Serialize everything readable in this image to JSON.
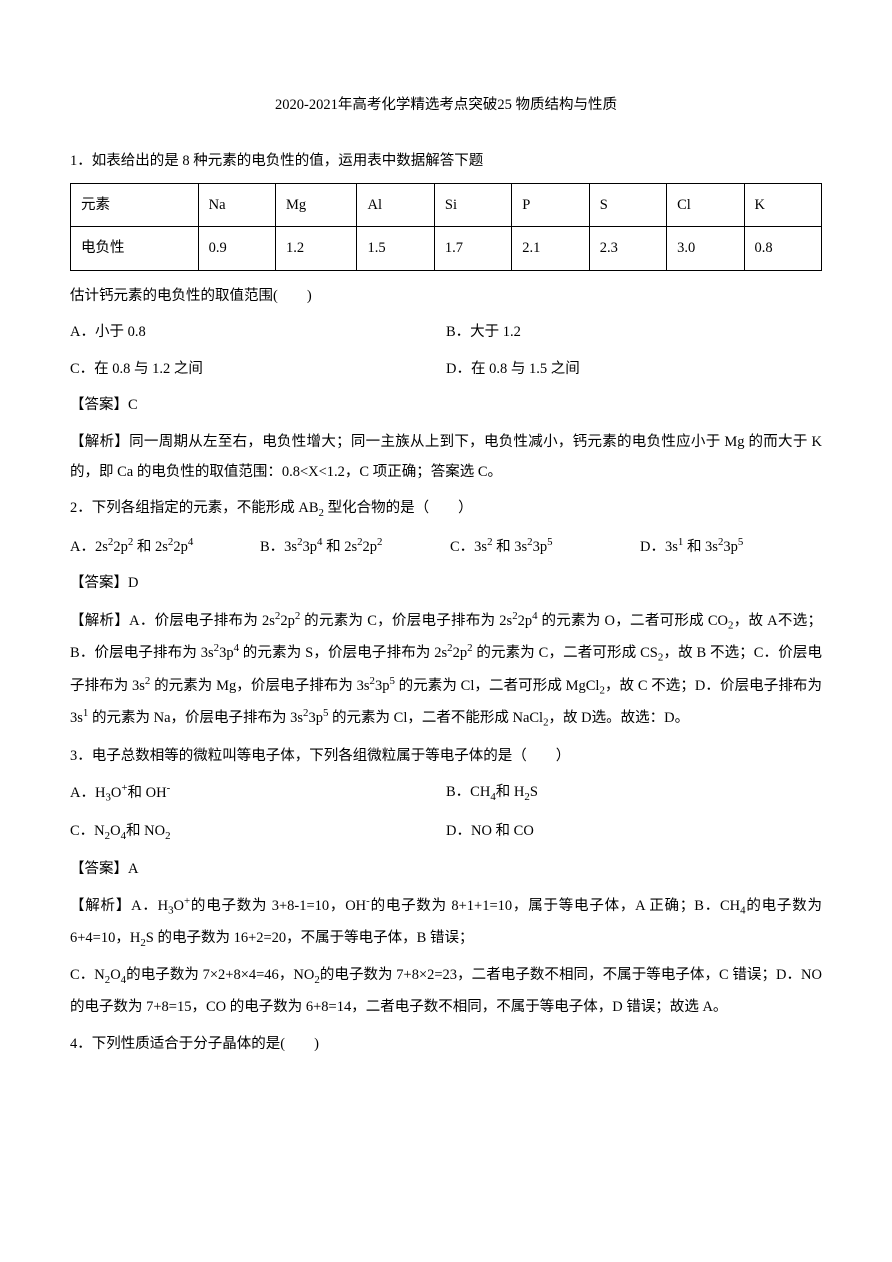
{
  "title": "2020-2021年高考化学精选考点突破25 物质结构与性质",
  "q1": {
    "stem": "1．如表给出的是 8 种元素的电负性的值，运用表中数据解答下题",
    "table": {
      "rowLabels": [
        "元素",
        "电负性"
      ],
      "cols": [
        "Na",
        "Mg",
        "Al",
        "Si",
        "P",
        "S",
        "Cl",
        "K"
      ],
      "vals": [
        "0.9",
        "1.2",
        "1.5",
        "1.7",
        "2.1",
        "2.3",
        "3.0",
        "0.8"
      ]
    },
    "prompt": "估计钙元素的电负性的取值范围(　　)",
    "A": "A．小于 0.8",
    "B": "B．大于 1.2",
    "C": "C．在 0.8 与 1.2 之间",
    "D": "D．在 0.8 与 1.5 之间",
    "ans": "【答案】C",
    "exp": "【解析】同一周期从左至右，电负性增大；同一主族从上到下，电负性减小，钙元素的电负性应小于 Mg 的而大于 K 的，即 Ca 的电负性的取值范围：0.8<X<1.2，C 项正确；答案选 C。"
  },
  "q2": {
    "stem_pre": "2．下列各组指定的元素，不能形成 AB",
    "stem_sub": "2",
    "stem_post": " 型化合物的是（　　）",
    "A": {
      "p": "A．2s",
      "a": "2",
      "b": "2p",
      "c": "2",
      "d": " 和 2s",
      "e": "2",
      "f": "2p",
      "g": "4"
    },
    "B": {
      "p": "B．3s",
      "a": "2",
      "b": "3p",
      "c": "4",
      "d": " 和 2s",
      "e": "2",
      "f": "2p",
      "g": "2"
    },
    "C": {
      "p": "C．3s",
      "a": "2",
      "b": " 和 3s",
      "c": "2",
      "d": "3p",
      "e": "5"
    },
    "D": {
      "p": "D．3s",
      "a": "1",
      "b": " 和 3s",
      "c": "2",
      "d": "3p",
      "e": "5"
    },
    "ans": "【答案】D",
    "exp": {
      "t1": "【解析】A．价层电子排布为 2s",
      "s1": "2",
      "t2": "2p",
      "s2": "2",
      "t3": " 的元素为 C，价层电子排布为 2s",
      "s3": "2",
      "t4": "2p",
      "s4": "4",
      "t5": " 的元素为 O，二者可形成 CO",
      "s5": "2",
      "t6": "，故 A不选；B．价层电子排布为 3s",
      "s6": "2",
      "t7": "3p",
      "s7": "4",
      "t8": " 的元素为 S，价层电子排布为 2s",
      "s8": "2",
      "t9": "2p",
      "s9": "2",
      "t10": " 的元素为 C，二者可形成 CS",
      "s10": "2",
      "t11": "，故 B 不选；C．价层电子排布为 3s",
      "s11": "2",
      "t12": " 的元素为 Mg，价层电子排布为 3s",
      "s12": "2",
      "t13": "3p",
      "s13": "5",
      "t14": " 的元素为 Cl，二者可形成 MgCl",
      "s14": "2",
      "t15": "，故 C 不选；D．价层电子排布为 3s",
      "s15": "1",
      "t16": " 的元素为 Na，价层电子排布为 3s",
      "s16": "2",
      "t17": "3p",
      "s17": "5",
      "t18": " 的元素为 Cl，二者不能形成 NaCl",
      "s18": "2",
      "t19": "，故 D选。故选：D。"
    }
  },
  "q3": {
    "stem": "3．电子总数相等的微粒叫等电子体，下列各组微粒属于等电子体的是（　　）",
    "A": {
      "p": "A．H",
      "s1": "3",
      "t1": "O",
      "u1": "+",
      "t2": "和 OH",
      "u2": "-"
    },
    "B": {
      "p": "B．CH",
      "s1": "4",
      "t1": "和 H",
      "s2": "2",
      "t2": "S"
    },
    "C": {
      "p": "C．N",
      "s1": "2",
      "t1": "O",
      "s2": "4",
      "t2": "和 NO",
      "s3": "2"
    },
    "D": {
      "p": "D．NO 和 CO"
    },
    "ans": "【答案】A",
    "exp": {
      "t1": "【解析】A．H",
      "s1": "3",
      "t2": "O",
      "u1": "+",
      "t3": "的电子数为 3+8-1=10，OH",
      "u2": "-",
      "t4": "的电子数为 8+1+1=10，属于等电子体，A 正确；B．CH",
      "s2": "4",
      "t5": "的电子数为 6+4=10，H",
      "s3": "2",
      "t6": "S 的电子数为 16+2=20，不属于等电子体，B 错误；",
      "t7": "C．N",
      "s4": "2",
      "t8": "O",
      "s5": "4",
      "t9": "的电子数为 7×2+8×4=46，NO",
      "s6": "2",
      "t10": "的电子数为 7+8×2=23，二者电子数不相同，不属于等电子体，C 错误；D．NO 的电子数为 7+8=15，CO 的电子数为 6+8=14，二者电子数不相同，不属于等电子体，D 错误；故选 A。"
    }
  },
  "q4": {
    "stem": "4．下列性质适合于分子晶体的是(　　)"
  }
}
